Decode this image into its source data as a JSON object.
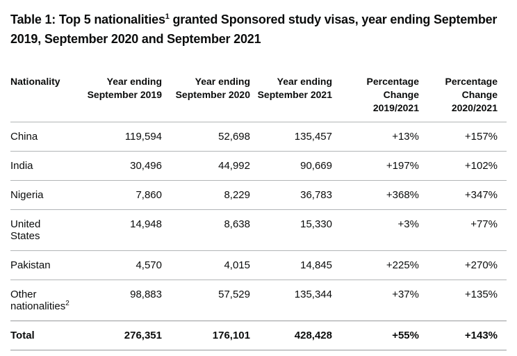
{
  "title": {
    "part1": "Table 1: Top 5 nationalities",
    "sup": "1",
    "part2": " granted Sponsored study visas, year ending September 2019, September 2020 and September 2021"
  },
  "table": {
    "headers": [
      {
        "lines": [
          "Nationality"
        ]
      },
      {
        "lines": [
          "Year ending",
          "September 2019"
        ]
      },
      {
        "lines": [
          "Year ending",
          "September 2020"
        ]
      },
      {
        "lines": [
          "Year ending",
          "September 2021"
        ]
      },
      {
        "lines": [
          "Percentage",
          "Change",
          "2019/2021"
        ]
      },
      {
        "lines": [
          "Percentage",
          "Change",
          "2020/2021"
        ]
      }
    ],
    "rows": [
      {
        "name_lines": [
          "China"
        ],
        "sup": "",
        "values": [
          "119,594",
          "52,698",
          "135,457",
          "+13%",
          "+157%"
        ]
      },
      {
        "name_lines": [
          "India"
        ],
        "sup": "",
        "values": [
          "30,496",
          "44,992",
          "90,669",
          "+197%",
          "+102%"
        ]
      },
      {
        "name_lines": [
          "Nigeria"
        ],
        "sup": "",
        "values": [
          "7,860",
          "8,229",
          "36,783",
          "+368%",
          "+347%"
        ]
      },
      {
        "name_lines": [
          "United",
          "States"
        ],
        "sup": "",
        "values": [
          "14,948",
          "8,638",
          "15,330",
          "+3%",
          "+77%"
        ]
      },
      {
        "name_lines": [
          "Pakistan"
        ],
        "sup": "",
        "values": [
          "4,570",
          "4,015",
          "14,845",
          "+225%",
          "+270%"
        ]
      },
      {
        "name_lines": [
          "Other",
          "nationalities"
        ],
        "sup": "2",
        "values": [
          "98,883",
          "57,529",
          "135,344",
          "+37%",
          "+135%"
        ]
      }
    ],
    "total": {
      "label": "Total",
      "values": [
        "276,351",
        "176,101",
        "428,428",
        "+55%",
        "+143%"
      ]
    }
  },
  "colors": {
    "text": "#0b0c0c",
    "row_divider": "#b1b4b6",
    "strong_divider": "#97999b"
  }
}
